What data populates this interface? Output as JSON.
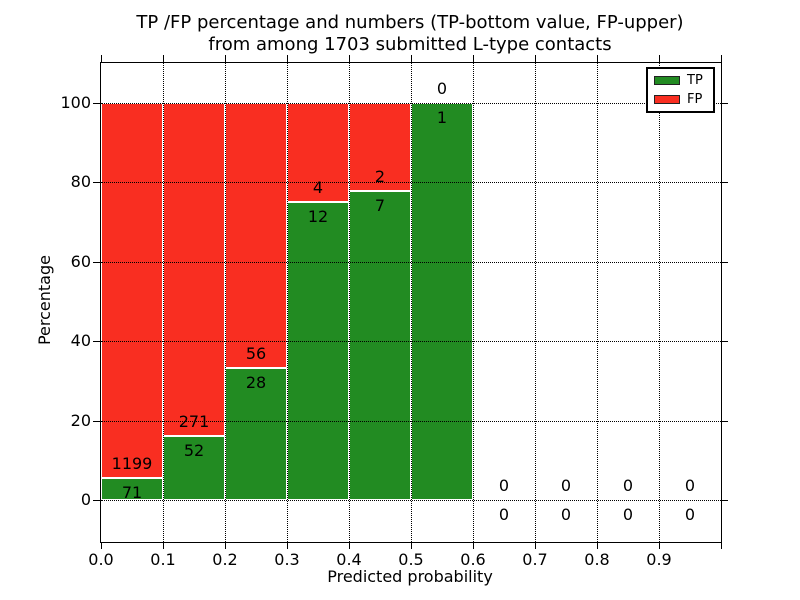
{
  "figure": {
    "title_line1": "TP /FP percentage and numbers (TP-bottom value, FP-upper)",
    "title_line2": "from among 1703 submitted L-type contacts"
  },
  "chart_data": {
    "type": "bar",
    "stacked": true,
    "normalization": "each bin scaled to 100% (TP bottom, FP top)",
    "title": "TP /FP percentage and numbers (TP-bottom value, FP-upper) from among 1703 submitted L-type contacts",
    "xlabel": "Predicted probability",
    "ylabel": "Percentage",
    "total_contacts": 1703,
    "bin_edges": [
      0.0,
      0.1,
      0.2,
      0.3,
      0.4,
      0.5,
      0.6,
      0.7,
      0.8,
      0.9,
      1.0
    ],
    "xtick_labels": [
      "0.0",
      "0.1",
      "0.2",
      "0.3",
      "0.4",
      "0.5",
      "0.6",
      "0.7",
      "0.8",
      "0.9"
    ],
    "ytick_values": [
      0,
      20,
      40,
      60,
      80,
      100
    ],
    "xlim": [
      0.0,
      1.0
    ],
    "ylim": [
      -10.6,
      110.4
    ],
    "grid": {
      "style": "dotted",
      "color": "#000000",
      "drawn_over_bars": true
    },
    "bar_edge_color": "#ffffff",
    "series": [
      {
        "name": "TP",
        "color": "#228b22",
        "values": [
          71,
          52,
          28,
          12,
          7,
          1,
          0,
          0,
          0,
          0
        ]
      },
      {
        "name": "FP",
        "color": "#f92e21",
        "values": [
          1199,
          271,
          56,
          4,
          2,
          0,
          0,
          0,
          0,
          0
        ]
      }
    ],
    "tp_percent_by_bin": [
      5.6,
      16.1,
      33.3,
      75.0,
      77.8,
      100.0,
      null,
      null,
      null,
      null
    ],
    "legend": {
      "position": "upper-right",
      "entries": [
        "TP",
        "FP"
      ]
    }
  }
}
